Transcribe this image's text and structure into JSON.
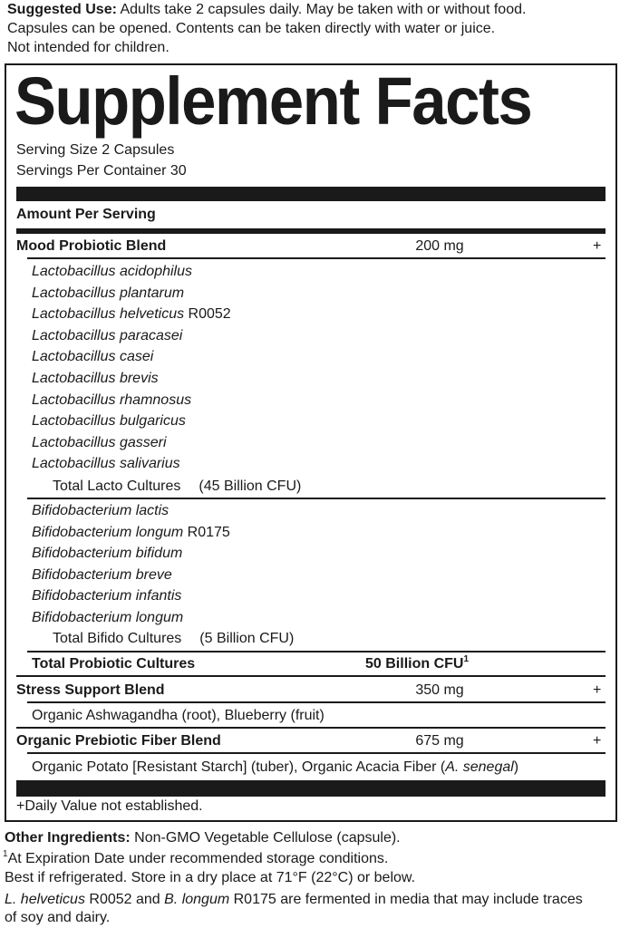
{
  "suggested_use": {
    "label": "Suggested Use:",
    "line1": "Adults take 2 capsules daily. May be taken with or without food.",
    "line2": "Capsules can be opened. Contents can be taken directly with water or juice.",
    "line3": "Not intended for children."
  },
  "facts": {
    "title": "Supplement Facts",
    "serving_size": "Serving Size 2 Capsules",
    "servings_per_container": "Servings Per Container 30",
    "amount_per_serving": "Amount Per Serving",
    "mood_blend": {
      "name": "Mood Probiotic Blend",
      "amount": "200 mg",
      "dv": "+"
    },
    "lacto_strains": [
      {
        "name": "Lactobacillus acidophilus",
        "code": ""
      },
      {
        "name": "Lactobacillus plantarum",
        "code": ""
      },
      {
        "name": "Lactobacillus helveticus",
        "code": "R0052"
      },
      {
        "name": "Lactobacillus paracasei",
        "code": ""
      },
      {
        "name": "Lactobacillus casei",
        "code": ""
      },
      {
        "name": "Lactobacillus brevis",
        "code": ""
      },
      {
        "name": "Lactobacillus rhamnosus",
        "code": ""
      },
      {
        "name": "Lactobacillus bulgaricus",
        "code": ""
      },
      {
        "name": "Lactobacillus gasseri",
        "code": ""
      },
      {
        "name": "Lactobacillus salivarius",
        "code": ""
      }
    ],
    "total_lacto": {
      "label": "Total Lacto Cultures",
      "amount": "(45 Billion CFU)"
    },
    "bifido_strains": [
      {
        "name": "Bifidobacterium lactis",
        "code": ""
      },
      {
        "name": "Bifidobacterium longum",
        "code": "R0175"
      },
      {
        "name": "Bifidobacterium bifidum",
        "code": ""
      },
      {
        "name": "Bifidobacterium breve",
        "code": ""
      },
      {
        "name": "Bifidobacterium infantis",
        "code": ""
      },
      {
        "name": "Bifidobacterium longum",
        "code": ""
      }
    ],
    "total_bifido": {
      "label": "Total Bifido Cultures",
      "amount": "(5 Billion CFU)"
    },
    "total_probiotic": {
      "label": "Total Probiotic Cultures",
      "amount": "50 Billion CFU",
      "footnote_mark": "1"
    },
    "stress_blend": {
      "name": "Stress Support Blend",
      "amount": "350 mg",
      "dv": "+",
      "ingredients": "Organic Ashwagandha (root), Blueberry (fruit)"
    },
    "fiber_blend": {
      "name": "Organic Prebiotic Fiber Blend",
      "amount": "675 mg",
      "dv": "+",
      "ingredients": "Organic Potato [Resistant Starch] (tuber), Organic Acacia Fiber (",
      "ingredients_italic": "A. senegal",
      "ingredients_end": ")"
    },
    "dv_note": "+Daily Value not established."
  },
  "other_ingredients": {
    "label": "Other Ingredients:",
    "text": "Non-GMO Vegetable Cellulose (capsule)."
  },
  "footnote": {
    "mark": "1",
    "line1": "At Expiration Date under recommended storage conditions.",
    "line2": "Best if refrigerated. Store in a dry place at 71°F (22°C) or below."
  },
  "allergen": {
    "it1": "L. helveticus",
    "t1": " R0052 and ",
    "it2": "B. longum",
    "t2": " R0175 are fermented in media that may include traces",
    "line2": "of soy and dairy."
  }
}
